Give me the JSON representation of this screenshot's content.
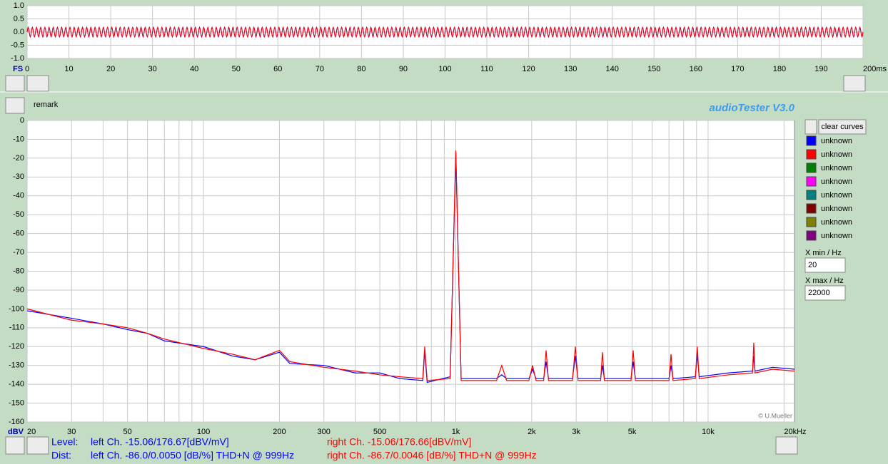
{
  "ui": {
    "remark": "remark",
    "app_title": "audioTester  V3.0",
    "clear_curves": "clear curves",
    "curves": [
      {
        "name": "unknown",
        "color": "#0000ff"
      },
      {
        "name": "unknown",
        "color": "#ff0000"
      },
      {
        "name": "unknown",
        "color": "#008000"
      },
      {
        "name": "unknown",
        "color": "#ff00ff"
      },
      {
        "name": "unknown",
        "color": "#008080"
      },
      {
        "name": "unknown",
        "color": "#800000"
      },
      {
        "name": "unknown",
        "color": "#808000"
      },
      {
        "name": "unknown",
        "color": "#800080"
      }
    ],
    "xmin_label": "X min / Hz",
    "xmin": 20,
    "xmax_label": "X max / Hz",
    "xmax": 22000,
    "copyright": "© U.Mueller",
    "level_label": "Level:",
    "level_left": "left Ch. -15.06/176.67[dBV/mV]",
    "level_right": "right Ch. -15.06/176.66[dBV/mV]",
    "dist_label": "Dist:",
    "dist_left": "left Ch. -86.0/0.0050 [dB/%] THD+N  @ 999Hz",
    "dist_right": "right Ch. -86.7/0.0046 [dB/%] THD+N  @ 999Hz"
  },
  "chart_data": [
    {
      "type": "sine",
      "y_unit": "FS",
      "amplitude": 0.18,
      "period": 1,
      "series": [
        {
          "color": "#0000ff"
        },
        {
          "color": "#ff0000"
        }
      ],
      "xlim": [
        0,
        200
      ],
      "xticks": [
        0,
        10,
        20,
        30,
        40,
        50,
        60,
        70,
        80,
        90,
        100,
        110,
        120,
        130,
        140,
        150,
        160,
        170,
        180,
        190,
        {
          "value": 200,
          "label": "200ms"
        }
      ],
      "ylim": [
        -1,
        1
      ],
      "yticks": [
        {
          "value": 1,
          "label": "1.0"
        },
        {
          "value": 0.5,
          "label": "0.5"
        },
        {
          "value": 0,
          "label": "0.0"
        },
        {
          "value": -0.5,
          "label": "-0.5"
        },
        {
          "value": -1,
          "label": "-1.0"
        }
      ],
      "grid": true
    },
    {
      "type": "line",
      "y_unit": "dBV",
      "log_x": true,
      "grid": true,
      "x": [
        20,
        30,
        40,
        50,
        60,
        70,
        100,
        130,
        160,
        200,
        220,
        300,
        400,
        500,
        600,
        740,
        753,
        770,
        950,
        990,
        1000,
        1010,
        1050,
        1450,
        1521,
        1590,
        1950,
        2014,
        2080,
        2230,
        2280,
        2330,
        2900,
        2978,
        3050,
        3750,
        3812,
        3880,
        4950,
        5047,
        5150,
        7000,
        7130,
        7260,
        8900,
        9060,
        9220,
        12000,
        15000,
        15170,
        15340,
        18000,
        22000
      ],
      "series": [
        {
          "color": "#0000ff",
          "values": [
            -101,
            -105,
            -108,
            -111,
            -113,
            -117,
            -120,
            -125,
            -127,
            -123,
            -129,
            -130,
            -134,
            -134,
            -137,
            -138,
            -122,
            -139,
            -136,
            -42,
            -17,
            -42,
            -137,
            -137,
            -135,
            -137,
            -137,
            -132,
            -137,
            -137,
            -128,
            -137,
            -137,
            -125,
            -137,
            -137,
            -130,
            -137,
            -137,
            -128,
            -137,
            -137,
            -130,
            -137,
            -136,
            -124,
            -136,
            -134,
            -133,
            -125,
            -133,
            -131,
            -132
          ]
        },
        {
          "color": "#ff0000",
          "values": [
            -100,
            -106,
            -108,
            -110,
            -113,
            -116,
            -121,
            -124,
            -127,
            -122,
            -128,
            -131,
            -133,
            -135,
            -136,
            -137,
            -120,
            -138,
            -137,
            -40,
            -16,
            -40,
            -138,
            -138,
            -130,
            -138,
            -138,
            -130,
            -138,
            -138,
            -122,
            -138,
            -138,
            -120,
            -138,
            -138,
            -123,
            -138,
            -138,
            -122,
            -138,
            -138,
            -124,
            -138,
            -137,
            -120,
            -137,
            -135,
            -134,
            -118,
            -134,
            -132,
            -133
          ]
        }
      ],
      "xlim": [
        20,
        22000
      ],
      "xticks": [
        20,
        30,
        50,
        100,
        200,
        300,
        500,
        {
          "value": 1000,
          "label": "1k"
        },
        {
          "value": 2000,
          "label": "2k"
        },
        {
          "value": 3000,
          "label": "3k"
        },
        {
          "value": 5000,
          "label": "5k"
        },
        {
          "value": 10000,
          "label": "10k"
        },
        {
          "value": 20000,
          "label": "20kHz"
        }
      ],
      "xminor": [
        40,
        60,
        70,
        80,
        90,
        400,
        600,
        700,
        800,
        900,
        4000,
        6000,
        7000,
        8000,
        9000
      ],
      "ylim": [
        -160,
        0
      ],
      "yticks": [
        0,
        -10,
        -20,
        -30,
        -40,
        -50,
        -60,
        -70,
        -80,
        -90,
        -100,
        -110,
        -120,
        -130,
        -140,
        -150,
        -160
      ]
    }
  ]
}
